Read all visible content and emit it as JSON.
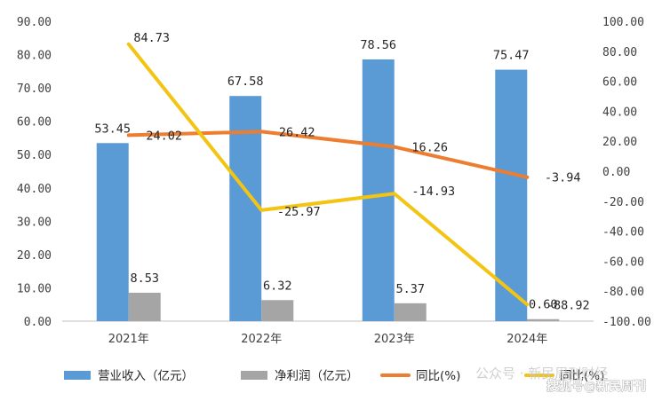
{
  "chart_data": {
    "type": "bar",
    "categories": [
      "2021年",
      "2022年",
      "2023年",
      "2024年"
    ],
    "series": [
      {
        "name": "营业收入（亿元）",
        "type": "bar",
        "axis": "left",
        "color": "#5B9BD5",
        "values": [
          53.45,
          67.58,
          78.56,
          75.47
        ]
      },
      {
        "name": "净利润（亿元）",
        "type": "bar",
        "axis": "left",
        "color": "#A5A5A5",
        "values": [
          8.53,
          6.32,
          5.37,
          0.6
        ]
      },
      {
        "name": "同比(%)",
        "type": "line",
        "axis": "right",
        "color": "#ED7D31",
        "values": [
          24.02,
          26.42,
          16.26,
          -3.94
        ]
      },
      {
        "name": "同比(%)",
        "type": "line",
        "axis": "right",
        "color": "#F2C414",
        "values": [
          84.73,
          -25.97,
          -14.93,
          -88.92
        ]
      }
    ],
    "data_labels": {
      "revenue": [
        "53.45",
        "67.58",
        "78.56",
        "75.47"
      ],
      "profit": [
        "8.53",
        "6.32",
        "5.37",
        "0.60"
      ],
      "revenue_yoy": [
        "24.02",
        "26.42",
        "16.26",
        "-3.94"
      ],
      "profit_yoy": [
        "84.73",
        "-25.97",
        "-14.93",
        "-88.92"
      ]
    },
    "left_axis": {
      "min": 0,
      "max": 90,
      "step": 10,
      "ticks": [
        "0.00",
        "10.00",
        "20.00",
        "30.00",
        "40.00",
        "50.00",
        "60.00",
        "70.00",
        "80.00",
        "90.00"
      ]
    },
    "right_axis": {
      "min": -100,
      "max": 100,
      "step": 20,
      "ticks": [
        "-100.00",
        "-80.00",
        "-60.00",
        "-40.00",
        "-20.00",
        "0.00",
        "20.00",
        "40.00",
        "60.00",
        "80.00",
        "100.00"
      ]
    },
    "legend_position": "bottom",
    "grid": false
  },
  "watermark": {
    "line1": "公众号 · 新民周刊财经",
    "line2": "搜狐号@新民周刊"
  }
}
